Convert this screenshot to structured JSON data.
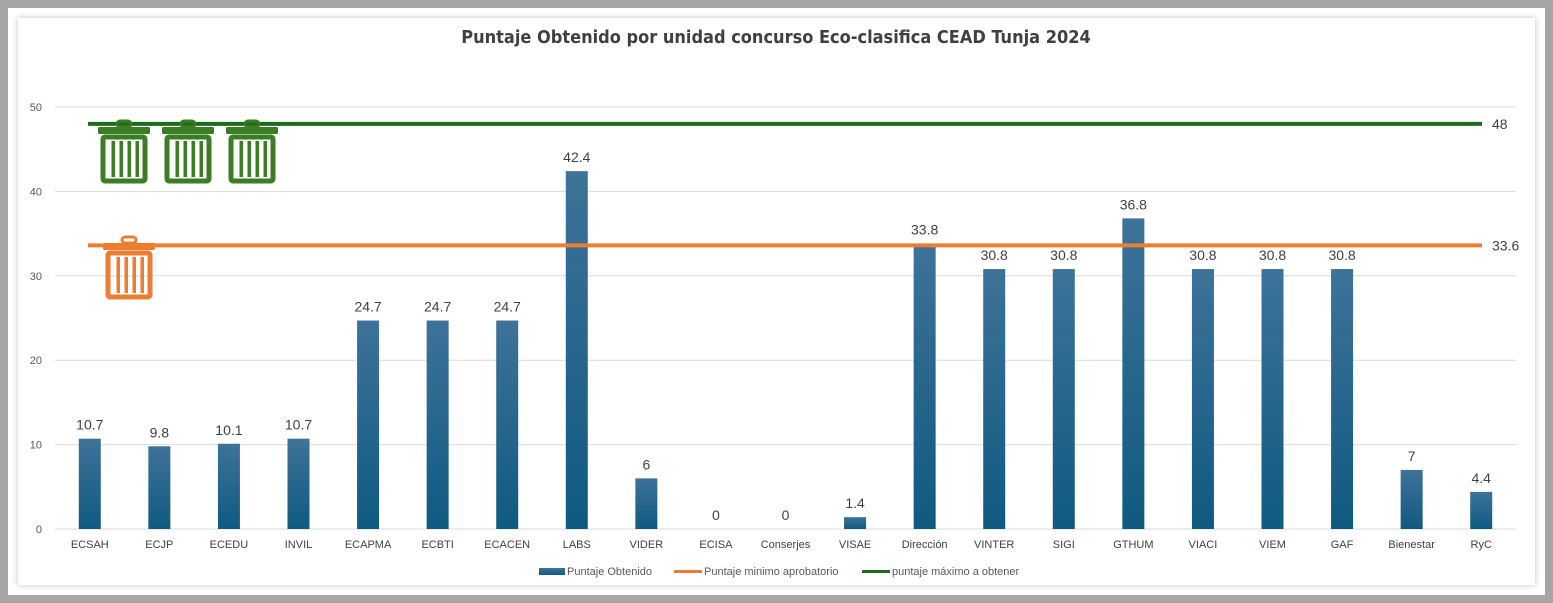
{
  "chart_data": {
    "type": "bar",
    "title": "Puntaje Obtenido por unidad concurso Eco-clasifica CEAD Tunja 2024",
    "categories": [
      "ECSAH",
      "ECJP",
      "ECEDU",
      "INVIL",
      "ECAPMA",
      "ECBTI",
      "ECACEN",
      "LABS",
      "VIDER",
      "ECISA",
      "Conserjes",
      "VISAE",
      "Dirección",
      "VINTER",
      "SIGI",
      "GTHUM",
      "VIACI",
      "VIEM",
      "GAF",
      "Bienestar",
      "RyC"
    ],
    "series": [
      {
        "name": "Puntaje Obtenido",
        "type": "bar",
        "color": "#1f5c85",
        "values": [
          10.7,
          9.8,
          10.1,
          10.7,
          24.7,
          24.7,
          24.7,
          42.4,
          6,
          0,
          0,
          1.4,
          33.8,
          30.8,
          30.8,
          36.8,
          30.8,
          30.8,
          30.8,
          7,
          4.4
        ]
      },
      {
        "name": "Puntaje minimo aprobatorio",
        "type": "line",
        "color": "#ed7d31",
        "value": 33.6,
        "label": "33.6"
      },
      {
        "name": "puntaje máximo a obtener",
        "type": "line",
        "color": "#1e6b1e",
        "value": 48,
        "label": "48"
      }
    ],
    "data_labels": [
      "10.7",
      "9.8",
      "10.1",
      "10.7",
      "24.7",
      "24.7",
      "24.7",
      "42.4",
      "6",
      "0",
      "0",
      "1.4",
      "33.8",
      "30.8",
      "30.8",
      "36.8",
      "30.8",
      "30.8",
      "30.8",
      "7",
      "4.4"
    ],
    "yticks": [
      "0",
      "10",
      "20",
      "30",
      "40",
      "50"
    ],
    "ylim": [
      0,
      50
    ],
    "grid": true,
    "legend_position": "bottom",
    "icons": [
      {
        "name": "green-trash-can-icon",
        "color": "#3a7d22",
        "count": 3
      },
      {
        "name": "orange-trash-can-icon",
        "color": "#ed7d31",
        "count": 1
      }
    ]
  }
}
